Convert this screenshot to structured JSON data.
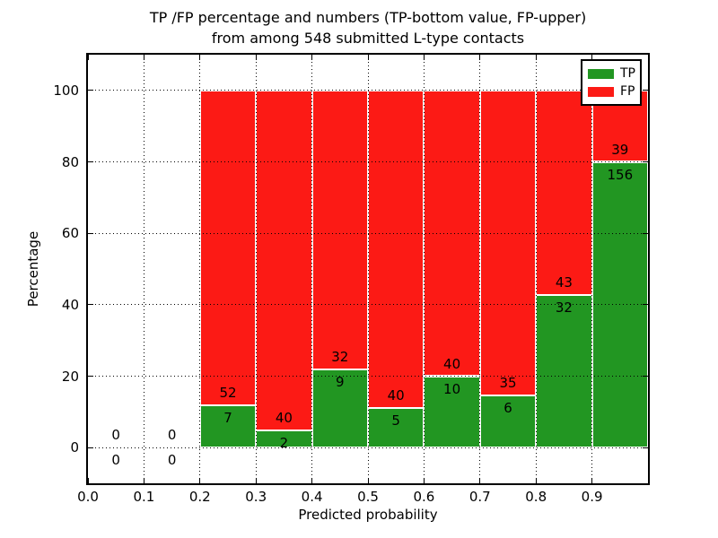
{
  "chart_data": {
    "type": "bar",
    "subtype": "stacked-percentage-histogram",
    "title": "TP /FP percentage and numbers (TP-bottom value, FP-upper) from among 548 submitted L-type contacts",
    "title_lines": [
      "TP /FP percentage and numbers (TP-bottom value, FP-upper)",
      "from among 548 submitted L-type contacts"
    ],
    "xlabel": "Predicted probability",
    "ylabel": "Percentage",
    "xlim": [
      0.0,
      1.0
    ],
    "ylim": [
      -10,
      110
    ],
    "grid": "dotted",
    "xticks": [
      0.0,
      0.1,
      0.2,
      0.3,
      0.4,
      0.5,
      0.6,
      0.7,
      0.8,
      0.9
    ],
    "xtick_labels": [
      "0.0",
      "0.1",
      "0.2",
      "0.3",
      "0.4",
      "0.5",
      "0.6",
      "0.7",
      "0.8",
      "0.9"
    ],
    "yticks": [
      0,
      20,
      40,
      60,
      80,
      100
    ],
    "ytick_labels": [
      "0",
      "20",
      "40",
      "60",
      "80",
      "100"
    ],
    "bin_edges": [
      0.0,
      0.1,
      0.2,
      0.3,
      0.4,
      0.5,
      0.6,
      0.7,
      0.8,
      0.9,
      1.0
    ],
    "series": [
      {
        "name": "TP",
        "color": "#229622",
        "counts": [
          0,
          0,
          7,
          2,
          9,
          5,
          10,
          6,
          32,
          156
        ]
      },
      {
        "name": "FP",
        "color": "#fc1a15",
        "counts": [
          0,
          0,
          52,
          40,
          32,
          40,
          40,
          35,
          43,
          39
        ]
      }
    ],
    "legend": {
      "position": "upper right",
      "entries": [
        "TP",
        "FP"
      ]
    }
  }
}
